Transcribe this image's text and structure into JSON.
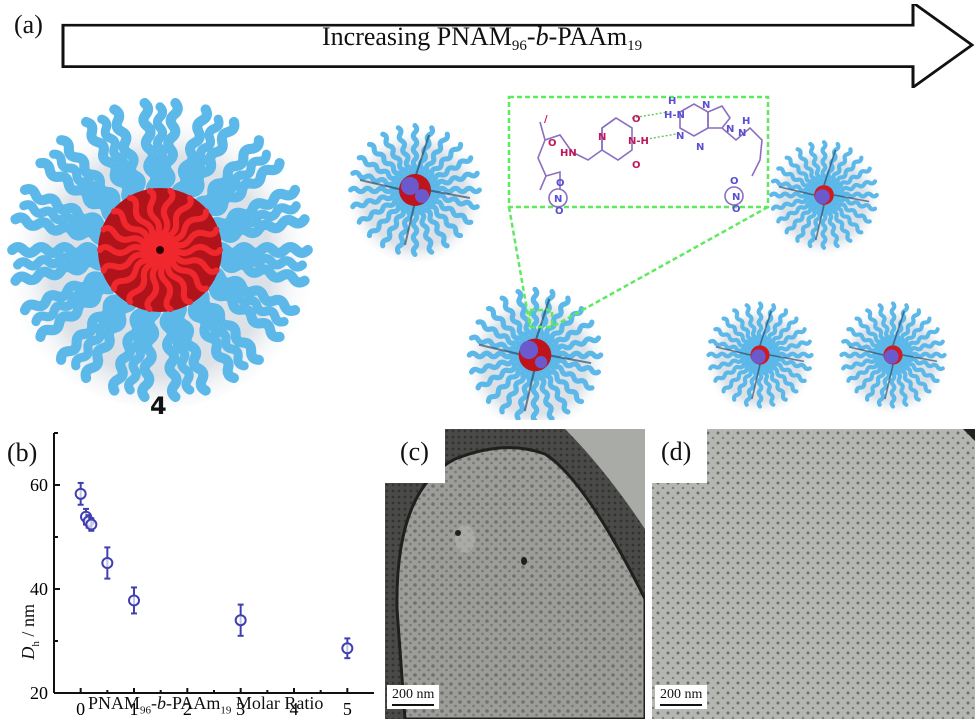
{
  "figure": {
    "panels": {
      "a": {
        "label": "(a)",
        "arrow_text_prefix": "Increasing PNAM",
        "arrow_sub1": "96",
        "arrow_mid": "-",
        "arrow_italic": "b",
        "arrow_mid2": "-PAAm",
        "arrow_sub2": "19",
        "micelle_caption": "4",
        "colors": {
          "corona": "#5BB8E8",
          "corona_dark": "#2A6F9E",
          "core_red": "#E8232A",
          "core_purple": "#6A5ACD",
          "zoom_box": "#5EEA5E",
          "chem_red": "#C2185B",
          "chem_blue": "#5A4FCF"
        },
        "chemistry_atoms": [
          "O",
          "H",
          "N",
          "H",
          "N",
          "N",
          "N",
          "N",
          "N",
          "H",
          "N",
          "H",
          "HN",
          "N",
          "O",
          "O",
          "N",
          "O",
          "O",
          "N",
          "O"
        ]
      },
      "b": {
        "label": "(b)",
        "ylabel_main": "D",
        "ylabel_sub": "h",
        "ylabel_unit": " / nm",
        "xlabel_prefix": "PNAM",
        "xlabel_sub1": "96",
        "xlabel_mid": "-",
        "xlabel_italic": "b",
        "xlabel_mid2": "-PAAm",
        "xlabel_sub2": "19",
        "xlabel_suffix": " Molar Ratio"
      },
      "c": {
        "label": "(c)",
        "scalebar": "200 nm"
      },
      "d": {
        "label": "(d)",
        "scalebar": "200 nm"
      }
    }
  },
  "chart_data": {
    "type": "scatter",
    "title": "",
    "xlabel": "PNAM96-b-PAAm19 Molar Ratio",
    "ylabel": "Dh / nm",
    "xlim": [
      -0.5,
      5.5
    ],
    "ylim": [
      20,
      70
    ],
    "xticks": [
      0,
      1,
      2,
      3,
      4,
      5
    ],
    "yticks": [
      20,
      40,
      60
    ],
    "grid": false,
    "legend": null,
    "series": [
      {
        "name": "Dh",
        "marker": "open-circle-with-errorbar",
        "color": "#3F3FB0",
        "x": [
          0,
          0.1,
          0.15,
          0.2,
          0.5,
          1,
          3,
          5
        ],
        "y": [
          58.3,
          53.9,
          53.0,
          52.4,
          45.0,
          37.8,
          34.0,
          28.6
        ],
        "yerr": [
          2.1,
          1.5,
          1.2,
          1.2,
          3.0,
          2.5,
          3.0,
          1.9
        ]
      }
    ]
  }
}
